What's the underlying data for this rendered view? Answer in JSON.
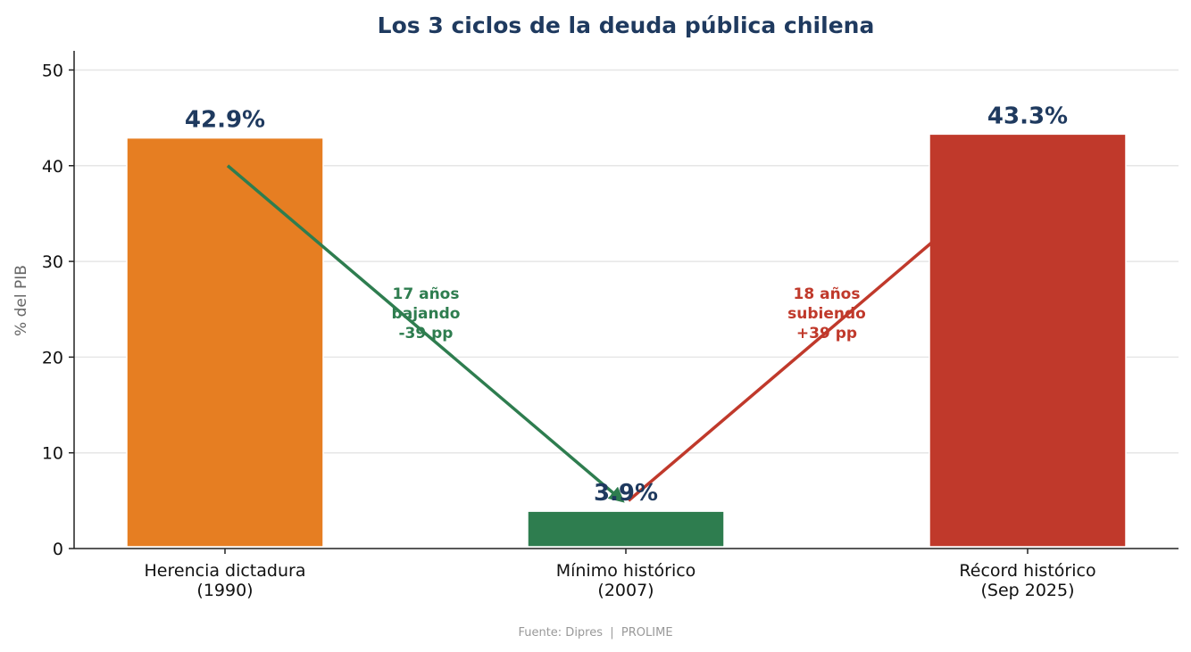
{
  "chart_data": {
    "type": "bar",
    "title": "Los 3 ciclos de la deuda pública chilena",
    "ylabel": "% del PIB",
    "xlabel": "",
    "ylim": [
      0,
      52
    ],
    "yticks": [
      0,
      10,
      20,
      30,
      40,
      50
    ],
    "grid": true,
    "categories": [
      [
        "Herencia dictadura",
        "(1990)"
      ],
      [
        "Mínimo histórico",
        "(2007)"
      ],
      [
        "Récord histórico",
        "(Sep 2025)"
      ]
    ],
    "values": [
      42.9,
      3.9,
      43.3
    ],
    "value_labels": [
      "42.9%",
      "3.9%",
      "43.3%"
    ],
    "colors": [
      "#e67e22",
      "#2e7d4f",
      "#c0392b"
    ],
    "annotations": [
      {
        "lines": [
          "17 años",
          "bajando",
          "-39 pp"
        ],
        "color": "#2e7d4f",
        "arrow_from": [
          0,
          40
        ],
        "arrow_to": [
          1,
          5
        ]
      },
      {
        "lines": [
          "18 años",
          "subiendo",
          "+39 pp"
        ],
        "color": "#c0392b",
        "arrow_from": [
          1,
          5
        ],
        "arrow_to": [
          2,
          32
        ]
      }
    ],
    "source": "Fuente: Dipres  |  PROLIME"
  }
}
